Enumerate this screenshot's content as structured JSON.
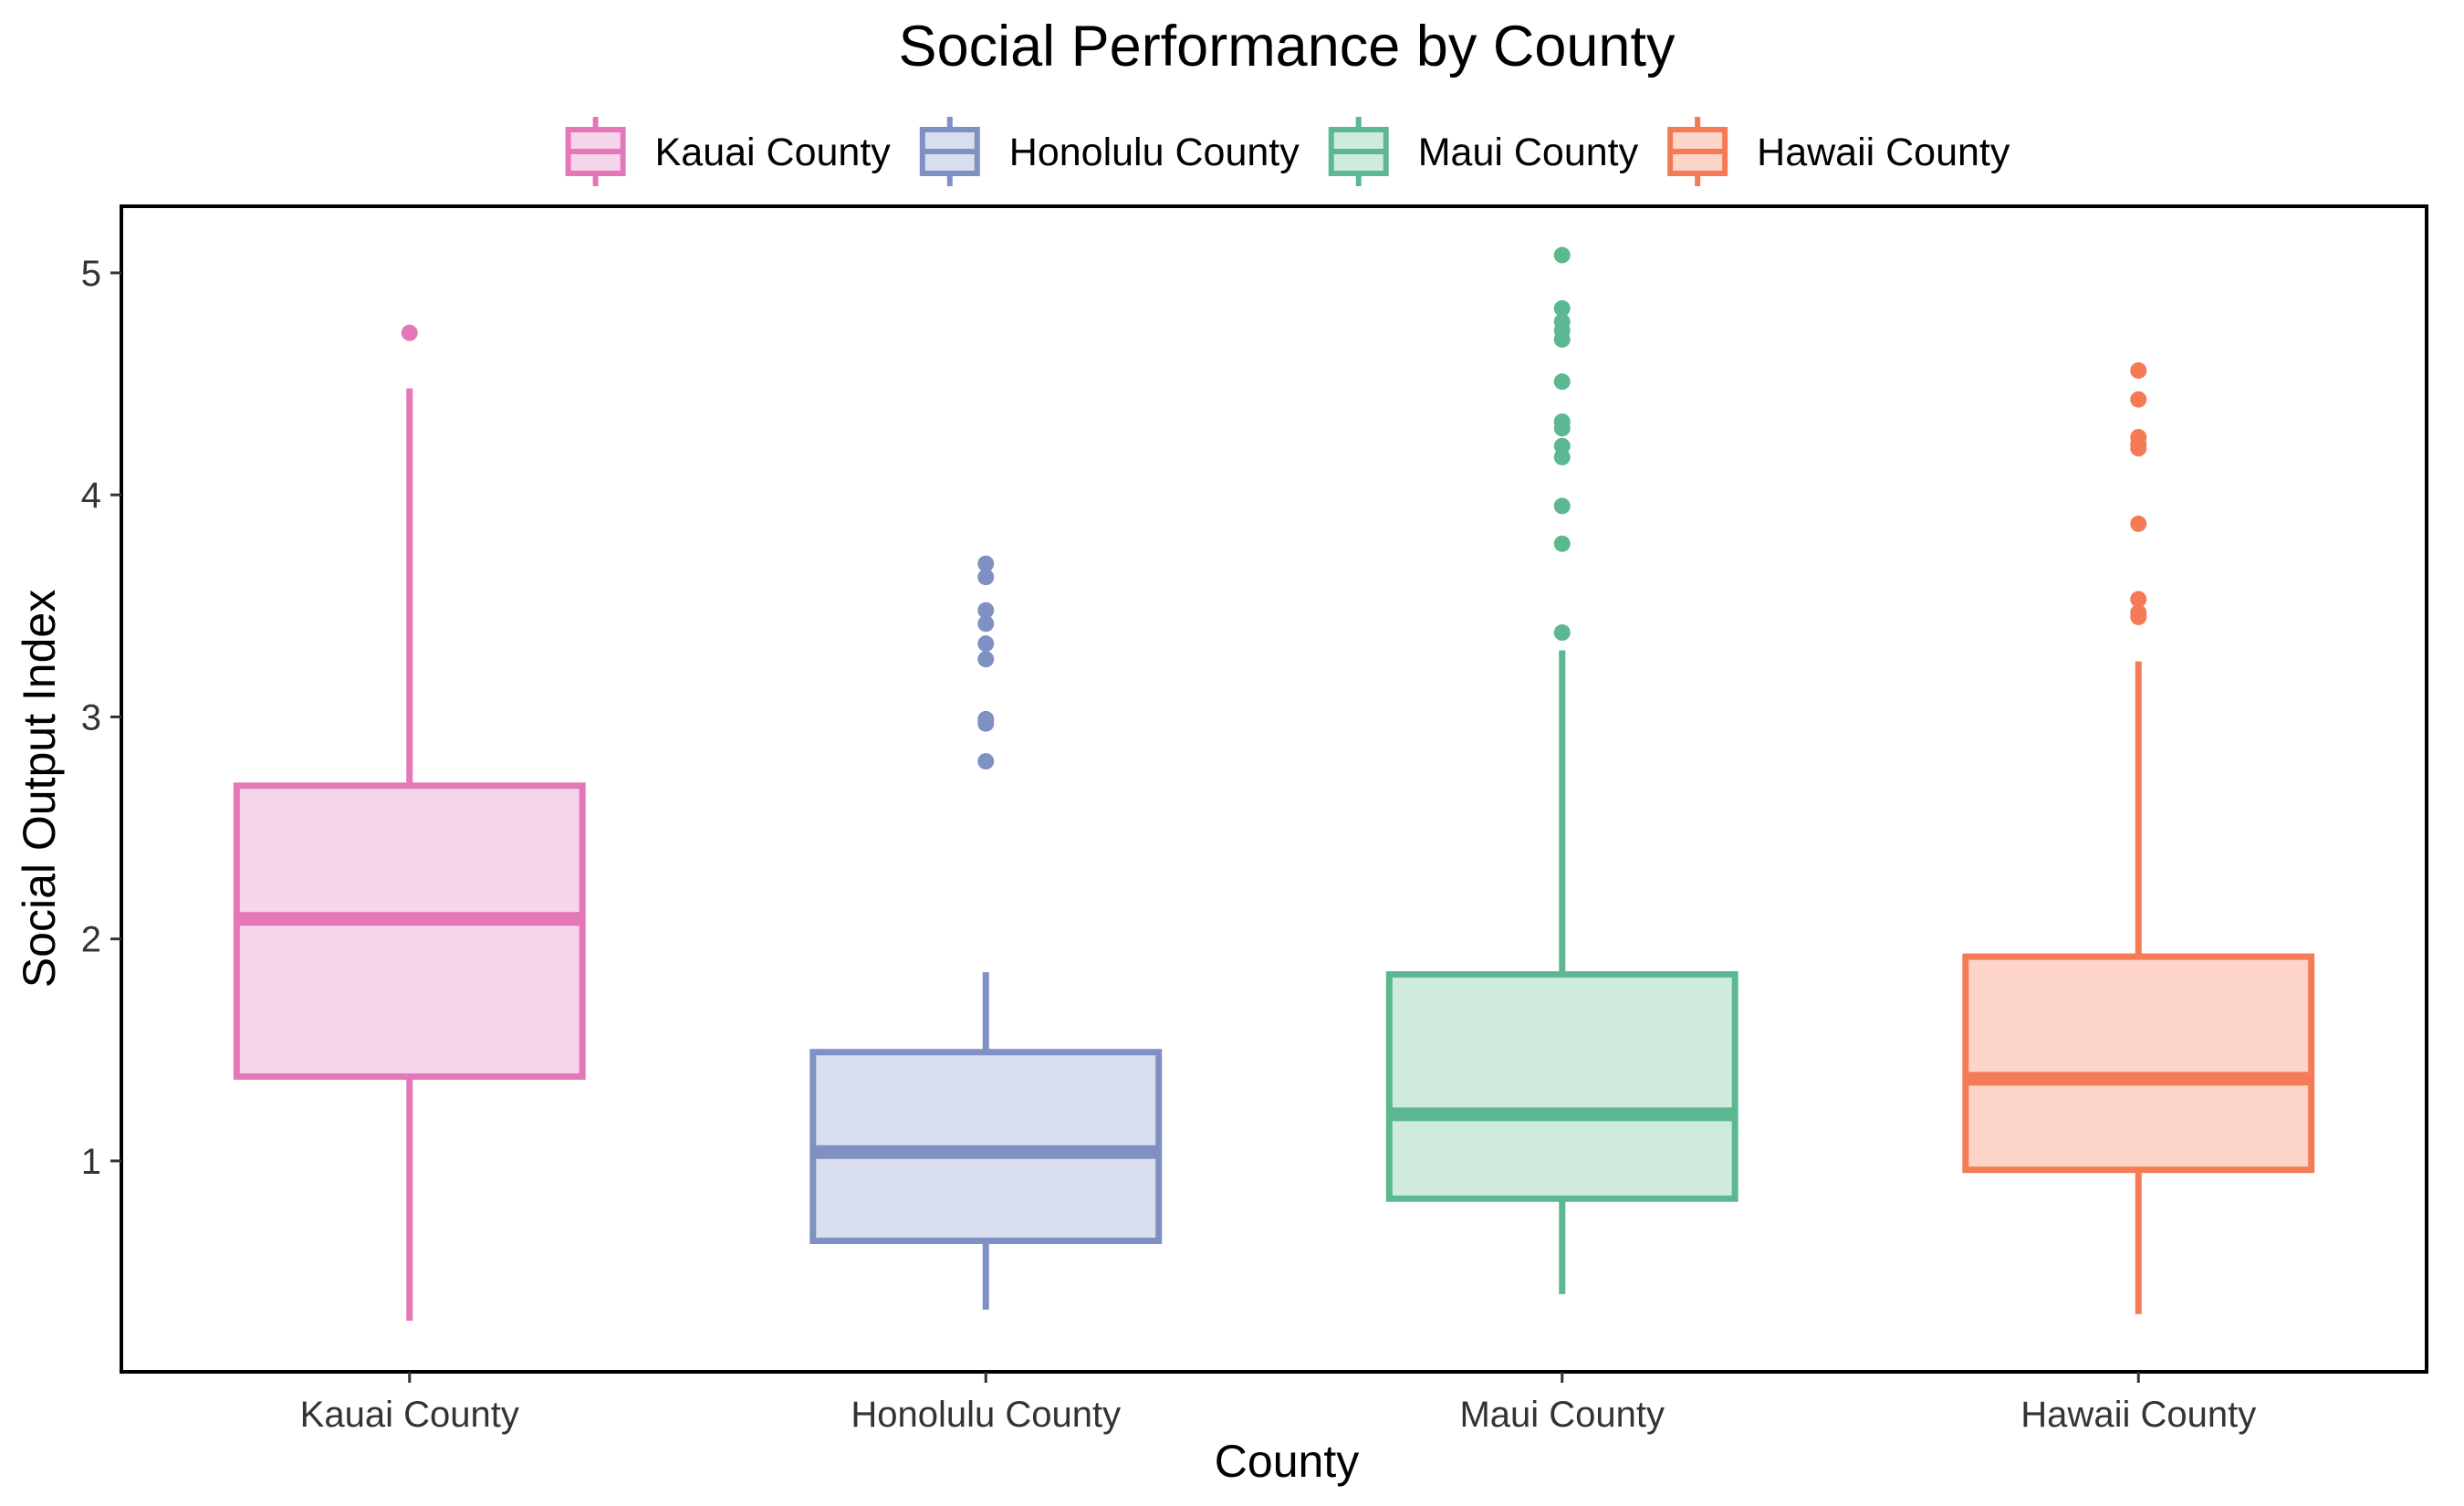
{
  "chart_data": {
    "type": "box",
    "title": "Social Performance by County",
    "xlabel": "County",
    "ylabel": "Social Output Index",
    "ylim": [
      0.05,
      5.3
    ],
    "yticks": [
      1,
      2,
      3,
      4,
      5
    ],
    "grid": false,
    "legend_position": "top",
    "categories": [
      "Kauai County",
      "Honolulu County",
      "Maui County",
      "Hawaii County"
    ],
    "series": [
      {
        "name": "Kauai County",
        "color": "#E377B8",
        "fill": "#F5D5EA",
        "whisker_low": 0.28,
        "q1": 1.38,
        "median": 2.09,
        "q3": 2.69,
        "whisker_high": 4.48,
        "outliers": [
          4.73
        ]
      },
      {
        "name": "Honolulu County",
        "color": "#7F90C3",
        "fill": "#D9DEEE",
        "whisker_low": 0.33,
        "q1": 0.64,
        "median": 1.04,
        "q3": 1.49,
        "whisker_high": 1.85,
        "outliers": [
          2.8,
          2.97,
          2.99,
          3.26,
          3.33,
          3.42,
          3.48,
          3.63,
          3.69
        ]
      },
      {
        "name": "Maui County",
        "color": "#5BB891",
        "fill": "#CEEBDD",
        "whisker_low": 0.4,
        "q1": 0.83,
        "median": 1.21,
        "q3": 1.84,
        "whisker_high": 3.3,
        "outliers": [
          3.38,
          3.78,
          3.95,
          4.17,
          4.22,
          4.3,
          4.33,
          4.51,
          4.7,
          4.74,
          4.78,
          4.84,
          5.08
        ]
      },
      {
        "name": "Hawaii County",
        "color": "#F47B56",
        "fill": "#FCD5C8",
        "whisker_low": 0.31,
        "q1": 0.96,
        "median": 1.37,
        "q3": 1.92,
        "whisker_high": 3.25,
        "outliers": [
          3.45,
          3.47,
          3.53,
          3.87,
          4.21,
          4.23,
          4.26,
          4.43,
          4.56
        ]
      }
    ]
  }
}
